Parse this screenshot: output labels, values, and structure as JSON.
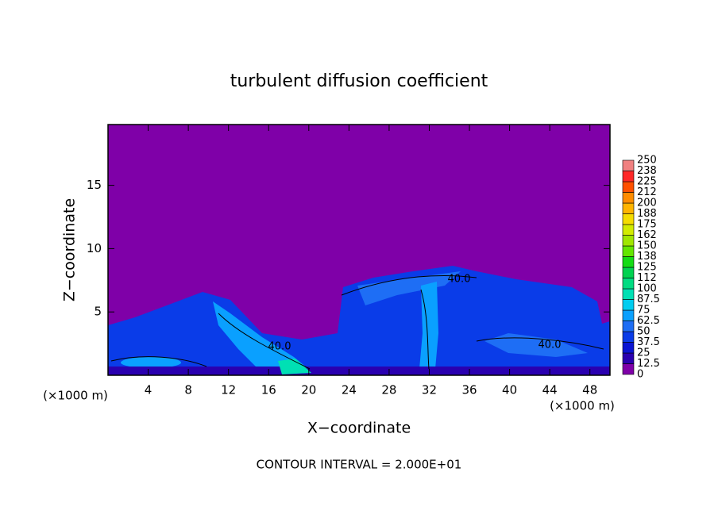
{
  "chart_data": {
    "type": "contour",
    "title": "turbulent diffusion coefficient",
    "xlabel": "X−coordinate",
    "ylabel": "Z−coordinate",
    "unit_label": "(×1000 m)",
    "footer": "CONTOUR INTERVAL = 2.000E+01",
    "xlim": [
      0,
      50
    ],
    "xticks": [
      4,
      8,
      12,
      16,
      20,
      24,
      28,
      32,
      36,
      40,
      44,
      48
    ],
    "ylim": [
      0,
      19.8
    ],
    "yticks": [
      5,
      10,
      15
    ],
    "colorbar": {
      "levels": [
        0,
        12.5,
        25,
        37.5,
        50,
        62.5,
        75,
        87.5,
        100,
        112,
        125,
        138,
        150,
        162,
        175,
        188,
        200,
        212,
        225,
        238,
        250
      ],
      "colors": [
        "#7f00a8",
        "#2a00b0",
        "#0a14d2",
        "#0a3ce8",
        "#1e6ef5",
        "#0aa0ff",
        "#00cdf0",
        "#00e0b4",
        "#00dc82",
        "#00d250",
        "#14dc14",
        "#64e600",
        "#a0e600",
        "#d2eb00",
        "#f5dc00",
        "#ffb400",
        "#ff8c00",
        "#ff5000",
        "#ff2828",
        "#f08080"
      ]
    },
    "contour_labels": [
      "40.0",
      "40.0",
      "40.0"
    ]
  }
}
